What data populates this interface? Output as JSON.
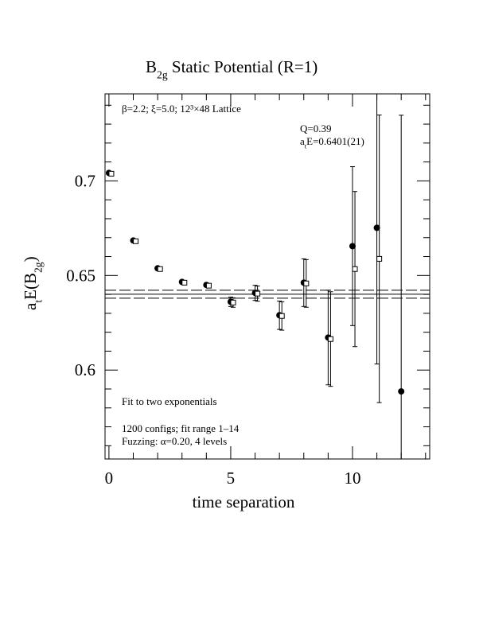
{
  "chart_data": {
    "type": "scatter",
    "title": [
      {
        "text": "B"
      },
      {
        "text": "2g",
        "script": "sub"
      },
      {
        "text": " Static Potential (R=1)"
      }
    ],
    "xlabel": "time separation",
    "ylabel": [
      {
        "text": "a"
      },
      {
        "text": "t",
        "script": "sub"
      },
      {
        "text": "E(B"
      },
      {
        "text": "2g",
        "script": "sub"
      },
      {
        "text": ")"
      }
    ],
    "xlim": [
      -0.16,
      13.17
    ],
    "ylim": [
      0.553,
      0.746
    ],
    "xticks": [
      0,
      5,
      10
    ],
    "yticks": [
      0.6,
      0.65,
      0.7
    ],
    "x_minor_ticks": [
      1,
      2,
      3,
      4,
      6,
      7,
      8,
      9,
      11,
      12,
      13
    ],
    "y_minor_ticks": [
      0.56,
      0.57,
      0.58,
      0.59,
      0.61,
      0.62,
      0.63,
      0.64,
      0.66,
      0.67,
      0.68,
      0.69,
      0.71,
      0.72,
      0.73,
      0.74
    ],
    "series": [
      {
        "marker": "circle-filled",
        "color": "#000000",
        "x": [
          0,
          1,
          2,
          3,
          4,
          5,
          6,
          7,
          8,
          9,
          10,
          11,
          12
        ],
        "values": [
          0.7042,
          0.6685,
          0.6538,
          0.6466,
          0.645,
          0.6361,
          0.6408,
          0.629,
          0.6462,
          0.6172,
          0.6655,
          0.6752,
          0.5887
        ],
        "errors": [
          0.0004,
          0.0005,
          0.0006,
          0.0008,
          0.001,
          0.0025,
          0.004,
          0.0075,
          0.0126,
          0.025,
          0.042,
          0.072,
          0.146
        ]
      },
      {
        "marker": "square-open",
        "color": "#000000",
        "x": [
          0.1,
          1.1,
          2.1,
          3.1,
          4.1,
          5.1,
          6.1,
          7.1,
          8.1,
          9.1,
          10.1,
          11.1
        ],
        "values": [
          0.7038,
          0.6681,
          0.6534,
          0.6462,
          0.6446,
          0.6357,
          0.6404,
          0.6286,
          0.6458,
          0.6164,
          0.6534,
          0.6588
        ],
        "errors": [
          0.0004,
          0.0005,
          0.0006,
          0.0008,
          0.001,
          0.0025,
          0.004,
          0.0075,
          0.0126,
          0.025,
          0.041,
          0.076
        ]
      }
    ],
    "fit": {
      "value": 0.6401,
      "error": 0.0021
    },
    "annotations": {
      "lattice": "β=2.2; ξ=5.0; 12³×48 Lattice",
      "q": "Q=0.39",
      "energy": [
        {
          "text": "a"
        },
        {
          "text": "t",
          "script": "sub"
        },
        {
          "text": "E=0.6401(21)"
        }
      ],
      "fit_note": "Fit to two exponentials",
      "configs": "1200 configs; fit range 1–14",
      "fuzzing": "Fuzzing: α=0.20, 4 levels"
    }
  }
}
